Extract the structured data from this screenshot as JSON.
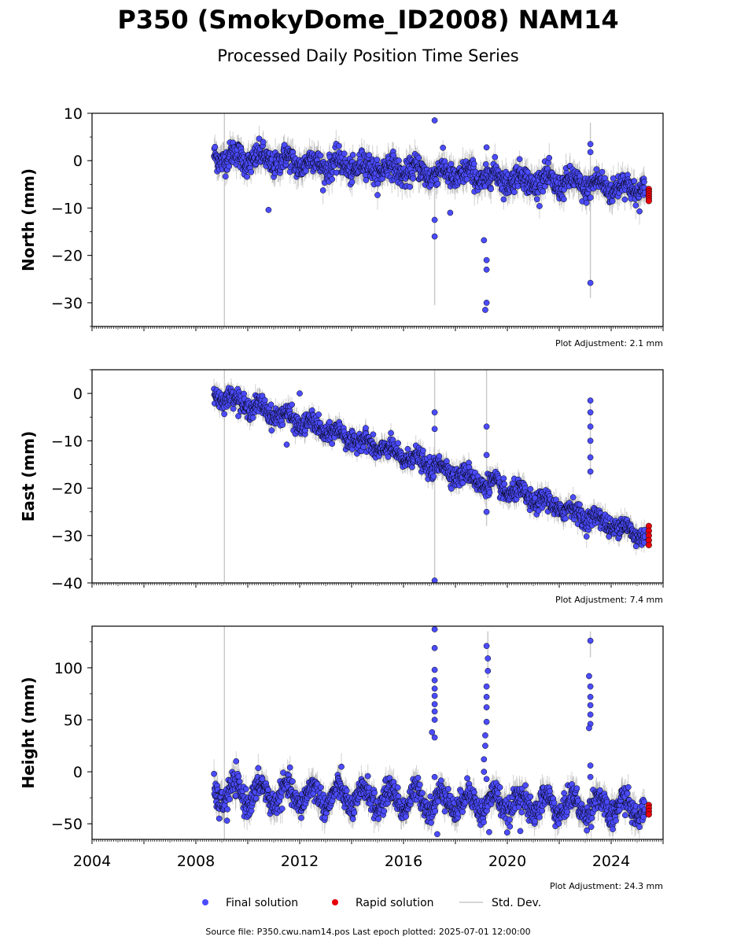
{
  "title": "P350 (SmokyDome_ID2008) NAM14",
  "subtitle": "Processed Daily Position Time Series",
  "legend": {
    "final": "Final solution",
    "rapid": "Rapid solution",
    "stddev": "Std. Dev."
  },
  "source_note": "Source file: P350.cwu.nam14.pos  Last epoch plotted: 2025-07-01 12:00:00",
  "colors": {
    "final": "#4b4bff",
    "rapid": "#e8000b",
    "stddev": "#c8c8c8",
    "edge": "#000000"
  },
  "chart_data": [
    {
      "type": "scatter",
      "ylabel": "North (mm)",
      "adjustment": "Plot Adjustment: 2.1 mm",
      "xlim": [
        2004.0,
        2026.0
      ],
      "ylim": [
        -35,
        10
      ],
      "yticks": [
        10,
        0,
        -10,
        -20,
        -30
      ],
      "ytick_labels": [
        "10",
        "0",
        "−10",
        "−20",
        "−30"
      ],
      "final_trend": {
        "start": [
          2008.7,
          1.0
        ],
        "end": [
          2025.3,
          -6.0
        ],
        "seasonal_amp": 1.2,
        "noise": 1.3
      },
      "final_outliers": [
        {
          "x": 2010.8,
          "y": -10.4
        },
        {
          "x": 2017.2,
          "y": 8.5
        },
        {
          "x": 2017.2,
          "y": -12.5
        },
        {
          "x": 2017.2,
          "y": -16.0
        },
        {
          "x": 2017.8,
          "y": -11.0
        },
        {
          "x": 2019.1,
          "y": -16.8
        },
        {
          "x": 2019.2,
          "y": -21.0
        },
        {
          "x": 2019.2,
          "y": -23.0
        },
        {
          "x": 2019.2,
          "y": -30.0
        },
        {
          "x": 2019.15,
          "y": -31.5
        },
        {
          "x": 2019.2,
          "y": 2.8
        },
        {
          "x": 2023.2,
          "y": 3.5
        },
        {
          "x": 2023.2,
          "y": 1.8
        },
        {
          "x": 2023.2,
          "y": -25.8
        }
      ],
      "rapid": {
        "x": 2025.45,
        "y_values": [
          -6.0,
          -6.5,
          -7.0,
          -7.5,
          -8.0,
          -8.5
        ]
      },
      "stddev_spikes": [
        {
          "x": 2009.1,
          "y": [
            10,
            -35
          ]
        },
        {
          "x": 2017.2,
          "y": [
            -5,
            -30.5
          ]
        },
        {
          "x": 2023.2,
          "y": [
            8,
            -29
          ]
        }
      ]
    },
    {
      "type": "scatter",
      "ylabel": "East (mm)",
      "adjustment": "Plot Adjustment: 7.4 mm",
      "xlim": [
        2004.0,
        2026.0
      ],
      "ylim": [
        -40,
        5
      ],
      "yticks": [
        0,
        -10,
        -20,
        -30,
        -40
      ],
      "ytick_labels": [
        "0",
        "−10",
        "−20",
        "−30",
        "−40"
      ],
      "final_trend": {
        "start": [
          2008.7,
          0.0
        ],
        "end": [
          2025.3,
          -30.0
        ],
        "seasonal_amp": 1.0,
        "noise": 1.0
      },
      "final_outliers": [
        {
          "x": 2011.5,
          "y": -10.8
        },
        {
          "x": 2012.0,
          "y": 0.0
        },
        {
          "x": 2017.2,
          "y": -4.0
        },
        {
          "x": 2017.2,
          "y": -7.5
        },
        {
          "x": 2017.2,
          "y": -39.5
        },
        {
          "x": 2019.2,
          "y": -7.0
        },
        {
          "x": 2019.2,
          "y": -13.0
        },
        {
          "x": 2019.2,
          "y": -25.0
        },
        {
          "x": 2023.2,
          "y": -1.5
        },
        {
          "x": 2023.2,
          "y": -4.0
        },
        {
          "x": 2023.2,
          "y": -7.0
        },
        {
          "x": 2023.2,
          "y": -10.0
        },
        {
          "x": 2023.2,
          "y": -13.5
        },
        {
          "x": 2023.2,
          "y": -16.5
        }
      ],
      "rapid": {
        "x": 2025.45,
        "y_values": [
          -28.0,
          -29.0,
          -30.0,
          -31.0,
          -32.0
        ]
      },
      "stddev_spikes": [
        {
          "x": 2009.1,
          "y": [
            5,
            -40
          ]
        },
        {
          "x": 2017.2,
          "y": [
            5,
            -40
          ]
        },
        {
          "x": 2019.2,
          "y": [
            5,
            -28
          ]
        },
        {
          "x": 2023.2,
          "y": [
            -1,
            -18
          ]
        }
      ]
    },
    {
      "type": "scatter",
      "ylabel": "Height (mm)",
      "adjustment": "Plot Adjustment: 24.3 mm",
      "xlim": [
        2004.0,
        2026.0
      ],
      "ylim": [
        -65,
        140
      ],
      "yticks": [
        100,
        50,
        0,
        -50
      ],
      "ytick_labels": [
        "100",
        "50",
        "0",
        "−50"
      ],
      "xticks": [
        2004,
        2008,
        2012,
        2016,
        2020,
        2024
      ],
      "xtick_labels": [
        "2004",
        "2008",
        "2012",
        "2016",
        "2020",
        "2024"
      ],
      "final_trend": {
        "start": [
          2008.7,
          -20.0
        ],
        "end": [
          2025.3,
          -35.0
        ],
        "seasonal_amp": 10.0,
        "noise": 6.0
      },
      "final_outliers": [
        {
          "x": 2017.2,
          "y": 137
        },
        {
          "x": 2017.2,
          "y": 119
        },
        {
          "x": 2017.2,
          "y": 98
        },
        {
          "x": 2017.2,
          "y": 88
        },
        {
          "x": 2017.2,
          "y": 80
        },
        {
          "x": 2017.2,
          "y": 73
        },
        {
          "x": 2017.2,
          "y": 65
        },
        {
          "x": 2017.2,
          "y": 58
        },
        {
          "x": 2017.2,
          "y": 50
        },
        {
          "x": 2017.1,
          "y": 38
        },
        {
          "x": 2017.2,
          "y": 33
        },
        {
          "x": 2017.2,
          "y": -5
        },
        {
          "x": 2019.2,
          "y": 121
        },
        {
          "x": 2019.25,
          "y": 109
        },
        {
          "x": 2019.25,
          "y": 97
        },
        {
          "x": 2019.2,
          "y": 82
        },
        {
          "x": 2019.2,
          "y": 72
        },
        {
          "x": 2019.2,
          "y": 62
        },
        {
          "x": 2019.2,
          "y": 48
        },
        {
          "x": 2019.15,
          "y": 35
        },
        {
          "x": 2019.15,
          "y": 25
        },
        {
          "x": 2019.1,
          "y": 12
        },
        {
          "x": 2019.1,
          "y": 0
        },
        {
          "x": 2019.2,
          "y": -7
        },
        {
          "x": 2023.2,
          "y": 126
        },
        {
          "x": 2023.15,
          "y": 92
        },
        {
          "x": 2023.2,
          "y": 82
        },
        {
          "x": 2023.2,
          "y": 72
        },
        {
          "x": 2023.2,
          "y": 64
        },
        {
          "x": 2023.2,
          "y": 55
        },
        {
          "x": 2023.2,
          "y": 46
        },
        {
          "x": 2023.15,
          "y": 42
        },
        {
          "x": 2023.2,
          "y": 6
        },
        {
          "x": 2023.2,
          "y": -5
        },
        {
          "x": 2017.3,
          "y": -60
        },
        {
          "x": 2019.3,
          "y": -58
        },
        {
          "x": 2020.5,
          "y": -57
        },
        {
          "x": 2008.9,
          "y": -45
        },
        {
          "x": 2009.2,
          "y": -47
        }
      ],
      "rapid": {
        "x": 2025.45,
        "y_values": [
          -32,
          -35,
          -38,
          -41
        ]
      },
      "stddev_spikes": [
        {
          "x": 2009.1,
          "y": [
            140,
            -65
          ]
        },
        {
          "x": 2023.2,
          "y": [
            135,
            110
          ]
        },
        {
          "x": 2019.25,
          "y": [
            135,
            90
          ]
        }
      ]
    }
  ]
}
